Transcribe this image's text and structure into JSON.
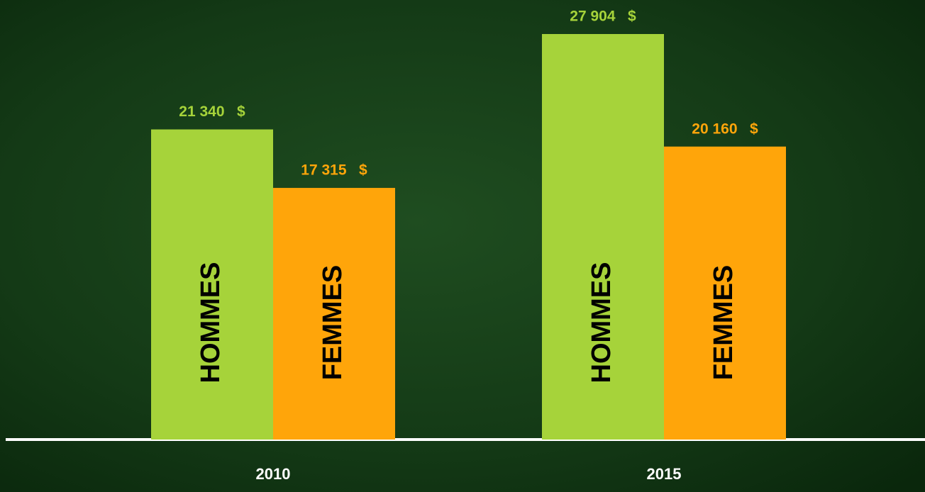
{
  "chart_data": {
    "type": "bar",
    "categories": [
      "2010",
      "2015"
    ],
    "series": [
      {
        "name": "HOMMES",
        "color": "#a6d33a",
        "values": [
          21340,
          27904
        ],
        "value_labels": [
          "21 340   $",
          "27 904   $"
        ]
      },
      {
        "name": "FEMMES",
        "color": "#ffa50a",
        "values": [
          17315,
          20160
        ],
        "value_labels": [
          "17 315   $",
          "20 160   $"
        ]
      }
    ]
  }
}
